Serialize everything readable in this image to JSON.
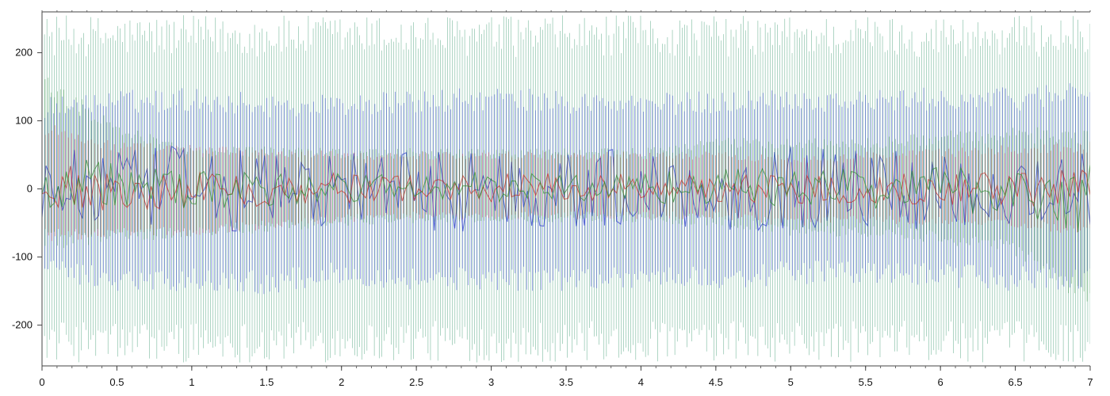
{
  "chart_data": {
    "type": "line",
    "title": "",
    "xlabel": "",
    "ylabel": "",
    "xlim": [
      0,
      7
    ],
    "ylim": [
      -260,
      260
    ],
    "x_ticks": [
      0,
      0.5,
      1,
      1.5,
      2,
      2.5,
      3,
      3.5,
      4,
      4.5,
      5,
      5.5,
      6,
      6.5,
      7
    ],
    "x_tick_labels": [
      "0",
      "0.5",
      "1",
      "1.5",
      "2",
      "2.5",
      "3",
      "3.5",
      "4",
      "4.5",
      "5",
      "5.5",
      "6",
      "6.5",
      "7"
    ],
    "y_ticks": [
      -200,
      -100,
      0,
      100,
      200
    ],
    "y_tick_labels": [
      "-200",
      "-100",
      "0",
      "100",
      "200"
    ],
    "grid": false,
    "legend": "none",
    "series": [
      {
        "color": "#1e8a5a",
        "description": "dense vertical oscillation reaching the full plot range",
        "x": [
          0,
          0.5,
          1,
          1.5,
          2,
          2.5,
          3,
          3.5,
          4,
          4.5,
          5,
          5.5,
          6,
          6.5,
          7
        ],
        "y_max": [
          255,
          255,
          255,
          255,
          255,
          255,
          255,
          255,
          255,
          255,
          255,
          255,
          255,
          255,
          255
        ],
        "y_min": [
          -255,
          -255,
          -255,
          -255,
          -255,
          -255,
          -255,
          -255,
          -255,
          -255,
          -255,
          -255,
          -255,
          -255,
          -255
        ]
      },
      {
        "color": "#2233cc",
        "x": [
          0,
          0.5,
          1,
          1.5,
          2,
          2.5,
          3,
          3.5,
          4,
          4.5,
          5,
          5.5,
          6,
          6.5,
          7
        ],
        "y_max": [
          135,
          145,
          150,
          140,
          140,
          145,
          150,
          145,
          140,
          145,
          150,
          145,
          150,
          150,
          165
        ],
        "y_min": [
          -135,
          -150,
          -150,
          -155,
          -140,
          -150,
          -150,
          -150,
          -145,
          -150,
          -140,
          -140,
          -145,
          -150,
          -150
        ]
      },
      {
        "color": "#cc2222",
        "x": [
          0,
          0.5,
          1,
          1.5,
          2,
          2.5,
          3,
          3.5,
          4,
          4.5,
          5,
          5.5,
          6,
          6.5,
          7
        ],
        "y_max": [
          100,
          70,
          65,
          60,
          55,
          55,
          55,
          55,
          55,
          55,
          50,
          55,
          60,
          65,
          70
        ],
        "y_min": [
          -80,
          -75,
          -70,
          -60,
          -50,
          -45,
          -45,
          -45,
          -45,
          -45,
          -55,
          -50,
          -55,
          -60,
          -70
        ]
      },
      {
        "color": "#2a8a2a",
        "x": [
          0,
          0.5,
          1,
          1.5,
          2,
          2.5,
          3,
          3.5,
          4,
          4.5,
          5,
          5.5,
          6,
          6.5,
          7
        ],
        "y_max": [
          170,
          100,
          60,
          65,
          60,
          60,
          60,
          60,
          60,
          75,
          75,
          75,
          85,
          90,
          95
        ],
        "y_min": [
          -90,
          -80,
          -70,
          -65,
          -55,
          -50,
          -50,
          -50,
          -50,
          -55,
          -70,
          -70,
          -80,
          -100,
          -175
        ]
      }
    ]
  }
}
